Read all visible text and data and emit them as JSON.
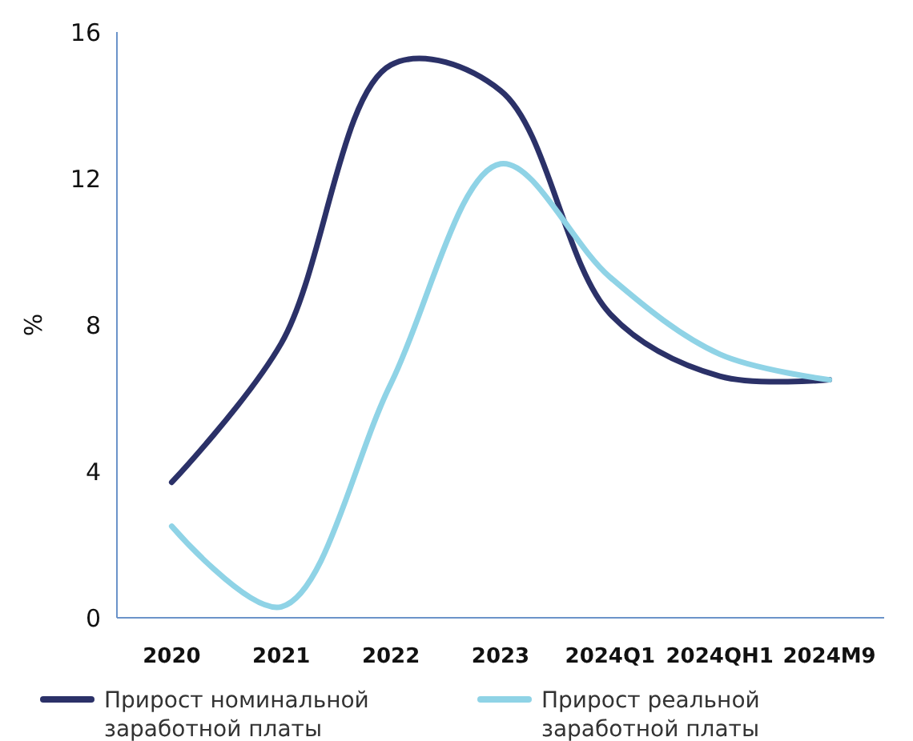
{
  "chart_data": {
    "type": "line",
    "ylabel": "%",
    "categories": [
      "2020",
      "2021",
      "2022",
      "2023",
      "2024Q1",
      "2024QH1",
      "2024M9"
    ],
    "series": [
      {
        "name": "Прирост номинальной заработной платы",
        "color": "#2b3168",
        "values": [
          3.7,
          7.5,
          15.1,
          14.4,
          8.3,
          6.6,
          6.5
        ]
      },
      {
        "name": "Прирост реальной заработной платы",
        "color": "#8fd3e6",
        "values": [
          2.5,
          0.3,
          6.4,
          12.4,
          9.3,
          7.2,
          6.5
        ]
      }
    ],
    "ylim": [
      0,
      16
    ],
    "yticks": [
      0,
      4,
      8,
      12,
      16
    ],
    "legend": "bottom",
    "marker": "none",
    "line_style": "solid"
  }
}
